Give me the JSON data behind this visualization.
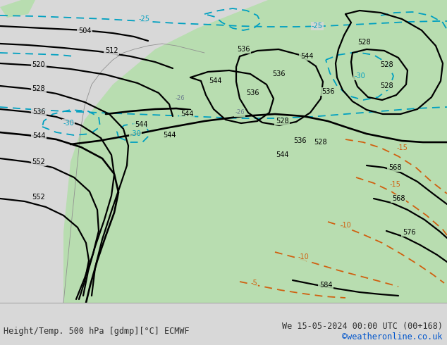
{
  "fig_width": 6.34,
  "fig_height": 4.9,
  "dpi": 100,
  "bg_color": "#d8d8d8",
  "sea_color": "#d8d8d8",
  "green_color": "#b8ddb0",
  "white_color": "#f0f0f0",
  "bottom_bar_color": "#e8e8e8",
  "bottom_text_left": "Height/Temp. 500 hPa [gdmp][°C] ECMWF",
  "bottom_text_right": "We 15-05-2024 00:00 UTC (00+168)",
  "bottom_text_link": "©weatheronline.co.uk",
  "text_color_main": "#303030",
  "text_color_link": "#0055cc",
  "contour_black": "#000000",
  "contour_cyan": "#00a0c0",
  "contour_orange": "#d06010",
  "label_gray": "#707070",
  "font_size_bottom": 9,
  "font_size_labels": 7
}
